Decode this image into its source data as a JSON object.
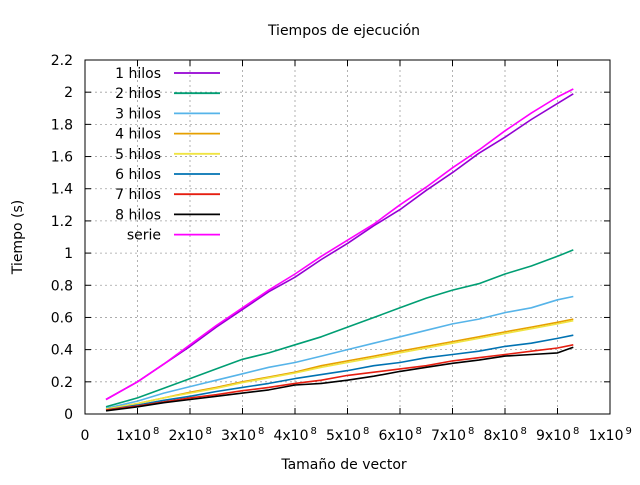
{
  "chart_data": {
    "type": "line",
    "title": "Tiempos de ejecución",
    "xlabel": "Tamaño de vector",
    "ylabel": "Tiempo (s)",
    "xlim": [
      0,
      1000000000
    ],
    "ylim": [
      0,
      2.2
    ],
    "grid": true,
    "legend_position": "top-left",
    "x_ticks": [
      {
        "value": 0,
        "label": "0",
        "exp": ""
      },
      {
        "value": 100000000,
        "label": "1x10",
        "exp": "8"
      },
      {
        "value": 200000000,
        "label": "2x10",
        "exp": "8"
      },
      {
        "value": 300000000,
        "label": "3x10",
        "exp": "8"
      },
      {
        "value": 400000000,
        "label": "4x10",
        "exp": "8"
      },
      {
        "value": 500000000,
        "label": "5x10",
        "exp": "8"
      },
      {
        "value": 600000000,
        "label": "6x10",
        "exp": "8"
      },
      {
        "value": 700000000,
        "label": "7x10",
        "exp": "8"
      },
      {
        "value": 800000000,
        "label": "8x10",
        "exp": "8"
      },
      {
        "value": 900000000,
        "label": "9x10",
        "exp": "8"
      },
      {
        "value": 1000000000,
        "label": "1x10",
        "exp": "9"
      }
    ],
    "y_ticks": [
      {
        "value": 0,
        "label": "0"
      },
      {
        "value": 0.2,
        "label": "0.2"
      },
      {
        "value": 0.4,
        "label": "0.4"
      },
      {
        "value": 0.6,
        "label": "0.6"
      },
      {
        "value": 0.8,
        "label": "0.8"
      },
      {
        "value": 1.0,
        "label": "1"
      },
      {
        "value": 1.2,
        "label": "1.2"
      },
      {
        "value": 1.4,
        "label": "1.4"
      },
      {
        "value": 1.6,
        "label": "1.6"
      },
      {
        "value": 1.8,
        "label": "1.8"
      },
      {
        "value": 2.0,
        "label": "2"
      },
      {
        "value": 2.2,
        "label": "2.2"
      }
    ],
    "x": [
      40000000,
      100000000,
      150000000,
      200000000,
      250000000,
      300000000,
      350000000,
      400000000,
      450000000,
      500000000,
      550000000,
      600000000,
      650000000,
      700000000,
      750000000,
      800000000,
      850000000,
      900000000,
      930000000
    ],
    "series": [
      {
        "name": "1 hilos",
        "color": "#9400d3",
        "values": [
          0.09,
          0.2,
          0.31,
          0.42,
          0.54,
          0.65,
          0.76,
          0.85,
          0.96,
          1.06,
          1.17,
          1.27,
          1.39,
          1.5,
          1.62,
          1.72,
          1.83,
          1.93,
          1.99
        ]
      },
      {
        "name": "2 hilos",
        "color": "#009e73",
        "values": [
          0.045,
          0.1,
          0.16,
          0.22,
          0.28,
          0.34,
          0.38,
          0.43,
          0.48,
          0.54,
          0.6,
          0.66,
          0.72,
          0.77,
          0.81,
          0.87,
          0.92,
          0.98,
          1.02
        ]
      },
      {
        "name": "3 hilos",
        "color": "#56b4e9",
        "values": [
          0.035,
          0.08,
          0.13,
          0.17,
          0.21,
          0.25,
          0.29,
          0.32,
          0.36,
          0.4,
          0.44,
          0.48,
          0.52,
          0.56,
          0.59,
          0.63,
          0.66,
          0.71,
          0.73
        ]
      },
      {
        "name": "4 hilos",
        "color": "#e69f00",
        "values": [
          0.03,
          0.065,
          0.1,
          0.135,
          0.165,
          0.2,
          0.23,
          0.26,
          0.3,
          0.33,
          0.36,
          0.39,
          0.42,
          0.45,
          0.48,
          0.51,
          0.54,
          0.57,
          0.59
        ]
      },
      {
        "name": "5 hilos",
        "color": "#f0e442",
        "values": [
          0.03,
          0.065,
          0.1,
          0.13,
          0.16,
          0.195,
          0.225,
          0.255,
          0.29,
          0.32,
          0.35,
          0.38,
          0.41,
          0.44,
          0.47,
          0.5,
          0.53,
          0.56,
          0.58
        ]
      },
      {
        "name": "6 hilos",
        "color": "#0072b2",
        "values": [
          0.025,
          0.055,
          0.085,
          0.11,
          0.14,
          0.165,
          0.19,
          0.22,
          0.245,
          0.27,
          0.3,
          0.32,
          0.35,
          0.37,
          0.39,
          0.42,
          0.44,
          0.47,
          0.49
        ]
      },
      {
        "name": "7 hilos",
        "color": "#e51e10",
        "values": [
          0.025,
          0.05,
          0.075,
          0.1,
          0.12,
          0.145,
          0.165,
          0.19,
          0.21,
          0.24,
          0.26,
          0.28,
          0.3,
          0.33,
          0.35,
          0.37,
          0.39,
          0.41,
          0.43
        ]
      },
      {
        "name": "8 hilos",
        "color": "#000000",
        "values": [
          0.02,
          0.045,
          0.07,
          0.09,
          0.11,
          0.13,
          0.15,
          0.18,
          0.19,
          0.21,
          0.235,
          0.265,
          0.29,
          0.315,
          0.335,
          0.36,
          0.37,
          0.38,
          0.415
        ]
      },
      {
        "name": "serie",
        "color": "#ff00ff",
        "values": [
          0.09,
          0.2,
          0.31,
          0.43,
          0.55,
          0.66,
          0.77,
          0.87,
          0.98,
          1.08,
          1.18,
          1.3,
          1.41,
          1.53,
          1.64,
          1.76,
          1.87,
          1.97,
          2.02
        ]
      }
    ]
  }
}
